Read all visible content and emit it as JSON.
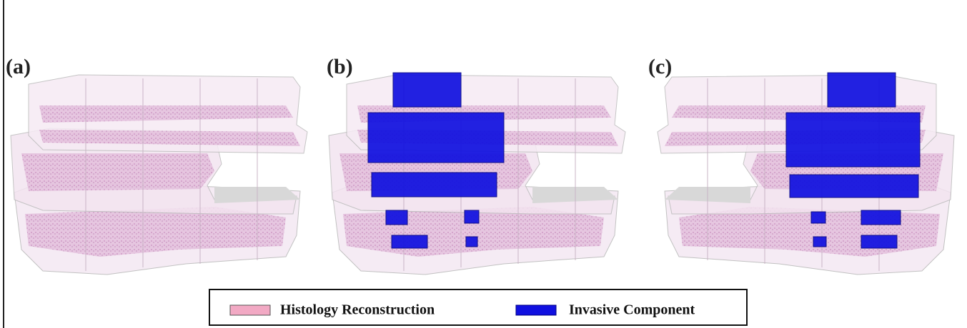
{
  "panels": [
    {
      "label": "(a)"
    },
    {
      "label": "(b)"
    },
    {
      "label": "(c)"
    }
  ],
  "legend": {
    "items": [
      {
        "label": "Histology Reconstruction"
      },
      {
        "label": "Invasive Component"
      }
    ]
  }
}
